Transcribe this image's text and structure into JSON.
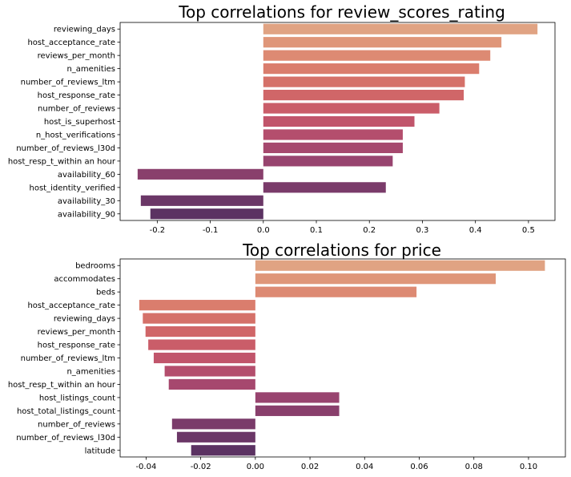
{
  "chart_data": [
    {
      "type": "bar",
      "orientation": "horizontal",
      "title": "Top correlations for review_scores_rating",
      "xlabel": "",
      "ylabel": "",
      "xlim": [
        -0.27,
        0.55
      ],
      "xticks": [
        "-0.2",
        "-0.1",
        "0.0",
        "0.1",
        "0.2",
        "0.3",
        "0.4",
        "0.5"
      ],
      "xtick_values": [
        -0.2,
        -0.1,
        0.0,
        0.1,
        0.2,
        0.3,
        0.4,
        0.5
      ],
      "grid": false,
      "palette": "flare",
      "categories": [
        "reviewing_days",
        "host_acceptance_rate",
        "reviews_per_month",
        "n_amenities",
        "number_of_reviews_ltm",
        "host_response_rate",
        "number_of_reviews",
        "host_is_superhost",
        "n_host_verifications",
        "number_of_reviews_l30d",
        "host_resp_t_within an hour",
        "availability_60",
        "host_identity_verified",
        "availability_30",
        "availability_90"
      ],
      "values": [
        0.517,
        0.449,
        0.428,
        0.407,
        0.38,
        0.378,
        0.332,
        0.285,
        0.263,
        0.263,
        0.244,
        -0.237,
        0.231,
        -0.231,
        -0.213
      ],
      "colors": [
        "#e0a383",
        "#df9679",
        "#dd8a73",
        "#da7d6d",
        "#d57169",
        "#d06668",
        "#ca5d69",
        "#c1556b",
        "#b44e6d",
        "#a6486e",
        "#98446f",
        "#893f6c",
        "#7a3b6a",
        "#6b3767",
        "#5b3262"
      ]
    },
    {
      "type": "bar",
      "orientation": "horizontal",
      "title": "Top correlations for price",
      "xlabel": "",
      "ylabel": "",
      "xlim": [
        -0.0495,
        0.1135
      ],
      "xticks": [
        "-0.04",
        "-0.02",
        "0.00",
        "0.02",
        "0.04",
        "0.06",
        "0.08",
        "0.10"
      ],
      "xtick_values": [
        -0.04,
        -0.02,
        0.0,
        0.02,
        0.04,
        0.06,
        0.08,
        0.1
      ],
      "grid": false,
      "palette": "flare",
      "categories": [
        "bedrooms",
        "accommodates",
        "beds",
        "host_acceptance_rate",
        "reviewing_days",
        "reviews_per_month",
        "host_response_rate",
        "number_of_reviews_ltm",
        "n_amenities",
        "host_resp_t_within an hour",
        "host_listings_count",
        "host_total_listings_count",
        "number_of_reviews",
        "number_of_reviews_l30d",
        "latitude"
      ],
      "values": [
        0.106,
        0.088,
        0.059,
        -0.0425,
        -0.0412,
        -0.0402,
        -0.0392,
        -0.0372,
        -0.0332,
        -0.0317,
        0.0307,
        0.0307,
        -0.0305,
        -0.0287,
        -0.0235
      ],
      "colors": [
        "#e0a383",
        "#df9679",
        "#dd8a73",
        "#da7d6d",
        "#d57169",
        "#d06668",
        "#ca5d69",
        "#c1556b",
        "#b44e6d",
        "#a6486e",
        "#98446f",
        "#893f6c",
        "#7a3b6a",
        "#6b3767",
        "#5b3262"
      ]
    }
  ]
}
